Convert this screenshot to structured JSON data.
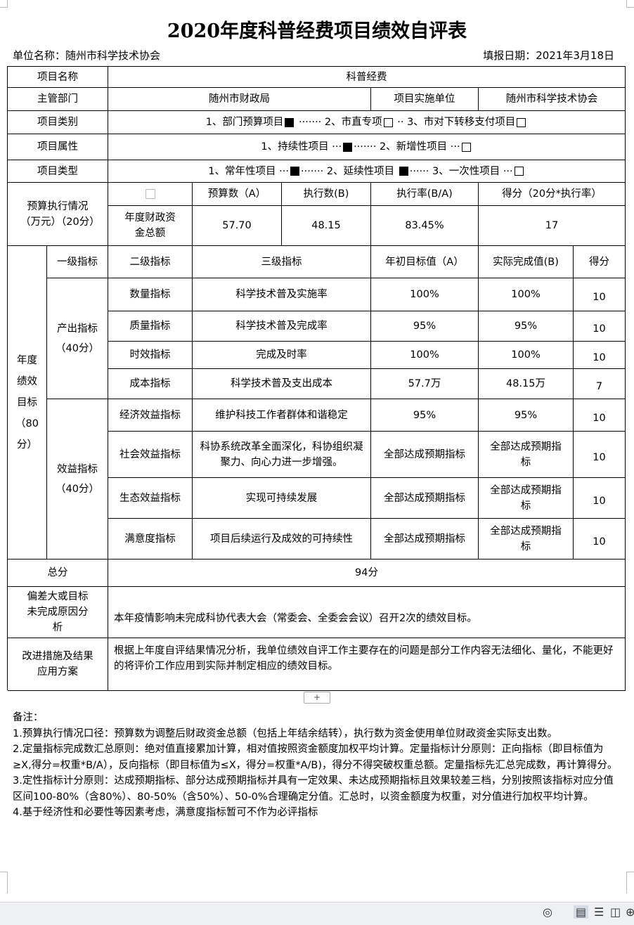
{
  "title": "2020年度科普经费项目绩效自评表",
  "unit": "单位名称：随州市科学技术协会",
  "date": "填报日期：2021年3月18日",
  "rows": {
    "name_label": "项目名称",
    "name_value": "科普经费",
    "dept_label": "主管部门",
    "dept_value": "随州市财政局",
    "impl_label": "项目实施单位",
    "impl_value": "随州市科学技术协会",
    "category_label": "项目类别",
    "category_opts": [
      "1、部门预算项目",
      "2、市直专项",
      "3、市对下转移支付项目"
    ],
    "category_checked": [
      true,
      false,
      false
    ],
    "attr_label": "项目属性",
    "attr_opts": [
      "1、持续性项目",
      "2、新增性项目"
    ],
    "attr_checked": [
      true,
      false
    ],
    "type_label": "项目类型",
    "type_opts": [
      "1、常年性项目",
      "2、延续性项目",
      "3、一次性项目"
    ],
    "type_checked": [
      true,
      true,
      false
    ]
  },
  "budget": {
    "label": "预算执行情况（万元）（20分）",
    "headers": [
      "预算数（A）",
      "执行数(B)",
      "执行率(B/A)",
      "得分（20分*执行率）"
    ],
    "row_label": "年度财政资金总额",
    "values": [
      "57.70",
      "48.15",
      "83.45%",
      "17"
    ]
  },
  "goals": {
    "label": "年度绩效目标（80分）",
    "headers": [
      "一级指标",
      "二级指标",
      "三级指标",
      "年初目标值（A）",
      "实际完成值(B)",
      "得分"
    ],
    "output_label": "产出指标（40分）",
    "benefit_label": "效益指标（40分）",
    "items": [
      {
        "l2": "数量指标",
        "l3": "科学技术普及实施率",
        "a": "100%",
        "b": "100%",
        "score": "10"
      },
      {
        "l2": "质量指标",
        "l3": "科学技术普及完成率",
        "a": "95%",
        "b": "95%",
        "score": "10"
      },
      {
        "l2": "时效指标",
        "l3": "完成及时率",
        "a": "100%",
        "b": "100%",
        "score": "10"
      },
      {
        "l2": "成本指标",
        "l3": "科学技术普及支出成本",
        "a": "57.7万",
        "b": "48.15万",
        "score": "7"
      },
      {
        "l2": "经济效益指标",
        "l3": "维护科技工作者群体和谐稳定",
        "a": "95%",
        "b": "95%",
        "score": "10"
      },
      {
        "l2": "社会效益指标",
        "l3": "科协系统改革全面深化，科协组织凝聚力、向心力进一步增强。",
        "a": "全部达成预期指标",
        "b": "全部达成预期指标",
        "score": "10"
      },
      {
        "l2": "生态效益指标",
        "l3": "实现可持续发展",
        "a": "全部达成预期指标",
        "b": "全部达成预期指标",
        "score": "10"
      },
      {
        "l2": "满意度指标",
        "l3": "项目后续运行及成效的可持续性",
        "a": "全部达成预期指标",
        "b": "全部达成预期指标",
        "score": "10"
      }
    ]
  },
  "total": {
    "label": "总分",
    "value": "94分"
  },
  "deviation": {
    "label": "偏差大或目标未完成原因分析",
    "value": "本年疫情影响未完成科协代表大会（常委会、全委会会议）召开2次的绩效目标。"
  },
  "improve": {
    "label": "改进措施及结果应用方案",
    "value": "根据上年度自评结果情况分析，我单位绩效自评工作主要存在的问题是部分工作内容无法细化、量化，不能更好的将评价工作应用到实际并制定相应的绩效目标。"
  },
  "notes": {
    "heading": "备注：",
    "items": [
      "1.预算执行情况口径：预算数为调整后财政资金总额（包括上年结余结转），执行数为资金使用单位财政资金实际支出数。",
      "2.定量指标完成数汇总原则：绝对值直接累加计算，相对值按照资金额度加权平均计算。定量指标计分原则：正向指标（即目标值为≥X,得分=权重*B/A），反向指标（即目标值为≤X，得分=权重*A/B)，得分不得突破权重总额。定量指标先汇总完成数，再计算得分。",
      "3.定性指标计分原则：达成预期指标、部分达成预期指标并具有一定效果、未达成预期指标且效果较差三档，分别按照该指标对应分值区间100-80%（含80%）、80-50%（含50%）、50-0%合理确定分值。汇总时，以资金额度为权重，对分值进行加权平均计算。",
      "4.基于经济性和必要性等因素考虑，满意度指标暂可不作为必评指标"
    ]
  },
  "ui": {
    "add_row": "+"
  }
}
